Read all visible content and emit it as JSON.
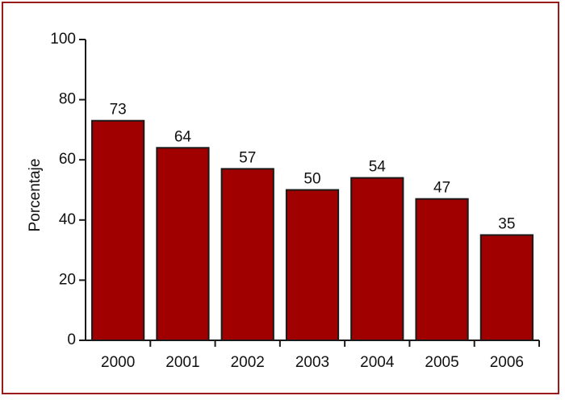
{
  "chart_data": {
    "type": "bar",
    "categories": [
      "2000",
      "2001",
      "2002",
      "2003",
      "2004",
      "2005",
      "2006"
    ],
    "values": [
      73,
      64,
      57,
      50,
      54,
      47,
      35
    ],
    "data_labels": [
      "73",
      "64",
      "57",
      "50",
      "54",
      "47",
      "35"
    ],
    "ylabel": "Porcentaje",
    "xlabel": "",
    "ylim": [
      0,
      100
    ],
    "yticks": [
      "0",
      "20",
      "40",
      "60",
      "80",
      "100"
    ],
    "grid": false,
    "legend": "none",
    "colors": {
      "bar_fill": "#a10000",
      "bar_stroke": "#1a1a1a",
      "frame": "#9b1b1b",
      "axis": "#1a1a1a"
    }
  }
}
